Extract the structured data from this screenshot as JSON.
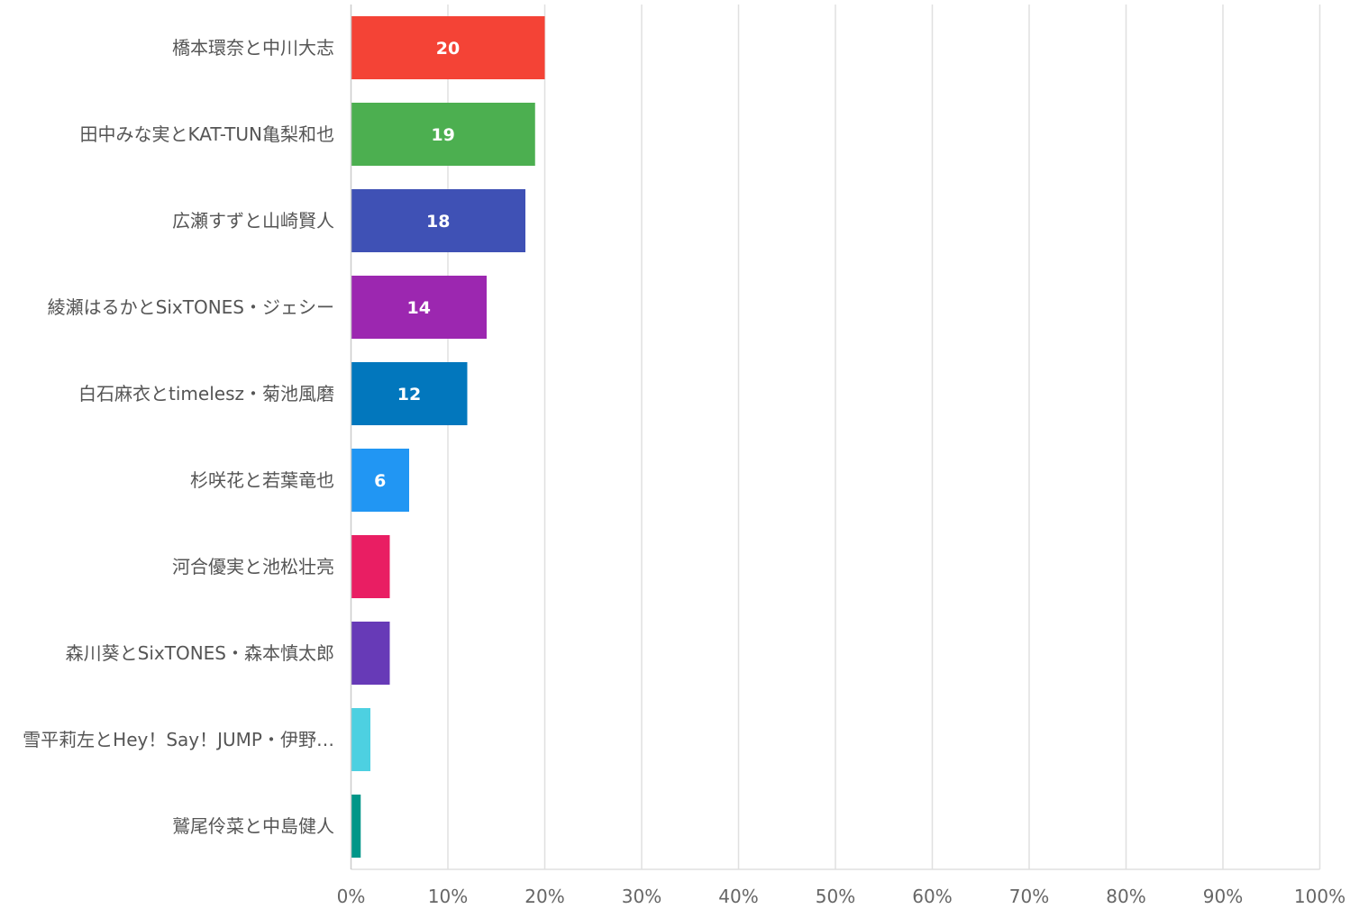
{
  "chart_data": {
    "type": "bar",
    "orientation": "horizontal",
    "categories": [
      "橋本環奈と中川大志",
      "田中みな実とKAT-TUN亀梨和也",
      "広瀬すずと山崎賢人",
      "綾瀬はるかとSixTONES・ジェシー",
      "白石麻衣とtimelesz・菊池風磨",
      "杉咲花と若葉竜也",
      "河合優実と池松壮亮",
      "森川葵とSixTONES・森本慎太郎",
      "雪平莉左とHey！Say！JUMP・伊野…",
      "鷲尾伶菜と中島健人"
    ],
    "values": [
      20,
      19,
      18,
      14,
      12,
      6,
      4,
      4,
      2,
      1
    ],
    "data_labels": [
      "20",
      "19",
      "18",
      "14",
      "12",
      "6",
      "",
      "",
      "",
      ""
    ],
    "colors": [
      "#f44336",
      "#4caf50",
      "#3f51b5",
      "#9c27b0",
      "#0277bd",
      "#2196f3",
      "#e91e63",
      "#673ab7",
      "#4dd0e1",
      "#009688"
    ],
    "xlim": [
      0,
      100
    ],
    "x_ticks": [
      "0%",
      "10%",
      "20%",
      "30%",
      "40%",
      "50%",
      "60%",
      "70%",
      "80%",
      "90%",
      "100%"
    ],
    "grid": true,
    "title": "",
    "xlabel": "",
    "ylabel": ""
  }
}
